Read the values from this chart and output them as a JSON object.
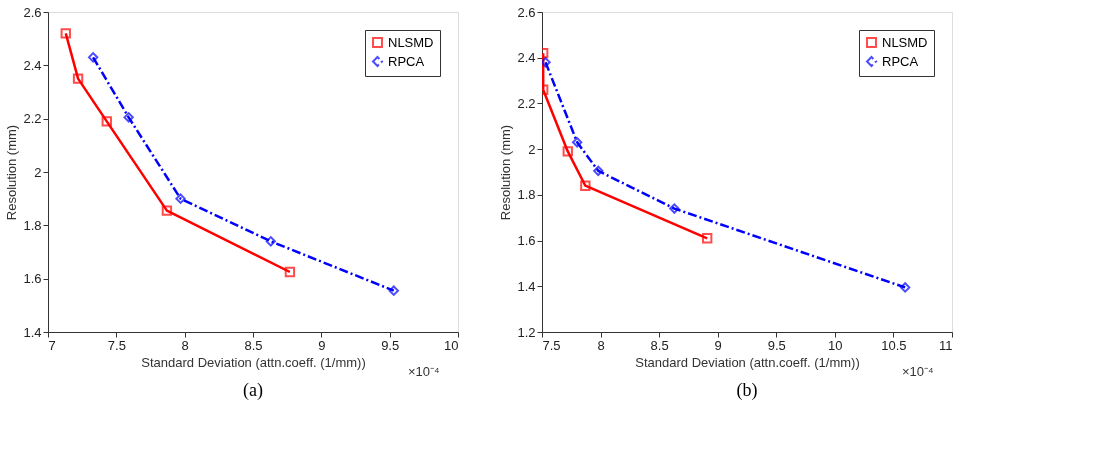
{
  "chart_data": [
    {
      "type": "line",
      "xlabel": "Standard Deviation (attn.coeff. (1/mm))",
      "ylabel": "Resolution (mm)",
      "xlim": [
        7,
        10
      ],
      "xticks": [
        7,
        7.5,
        8,
        8.5,
        9,
        9.5,
        10
      ],
      "ylim": [
        1.4,
        2.6
      ],
      "yticks": [
        1.4,
        1.6,
        1.8,
        2,
        2.2,
        2.4,
        2.6
      ],
      "legend": "top right",
      "grid": false,
      "annotations": [
        "×10⁻⁴",
        "(a)"
      ],
      "series": [
        {
          "name": "NLSMD",
          "color": "#ff0000",
          "marker": "square",
          "line_style": "solid",
          "x": [
            7.13,
            7.22,
            7.43,
            7.87,
            8.77
          ],
          "values": [
            2.52,
            2.35,
            2.19,
            1.855,
            1.625
          ]
        },
        {
          "name": "RPCA",
          "color": "#0000ff",
          "marker": "diamond",
          "line_style": "dashed",
          "x": [
            7.33,
            7.59,
            7.97,
            8.63,
            9.53
          ],
          "values": [
            2.43,
            2.205,
            1.9,
            1.74,
            1.555
          ]
        }
      ]
    },
    {
      "type": "line",
      "xlabel": "Standard Deviation (attn.coeff. (1/mm))",
      "ylabel": "Resolution (mm)",
      "xlim": [
        7.5,
        11
      ],
      "xticks": [
        7.5,
        8,
        8.5,
        9,
        9.5,
        10,
        10.5,
        11
      ],
      "ylim": [
        1.2,
        2.6
      ],
      "yticks": [
        1.2,
        1.4,
        1.6,
        1.8,
        2,
        2.2,
        2.4,
        2.6
      ],
      "legend": "top right",
      "grid": false,
      "annotations": [
        "×10⁻⁴",
        "(b)"
      ],
      "series": [
        {
          "name": "NLSMD",
          "color": "#ff0000",
          "marker": "square",
          "line_style": "solid",
          "x": [
            7.51,
            7.51,
            7.72,
            7.87,
            8.91
          ],
          "values": [
            2.42,
            2.26,
            1.99,
            1.84,
            1.61
          ]
        },
        {
          "name": "RPCA",
          "color": "#0000ff",
          "marker": "diamond",
          "line_style": "dashed",
          "x": [
            7.53,
            7.8,
            7.98,
            8.63,
            10.6
          ],
          "values": [
            2.38,
            2.03,
            1.905,
            1.74,
            1.395
          ]
        }
      ]
    }
  ]
}
